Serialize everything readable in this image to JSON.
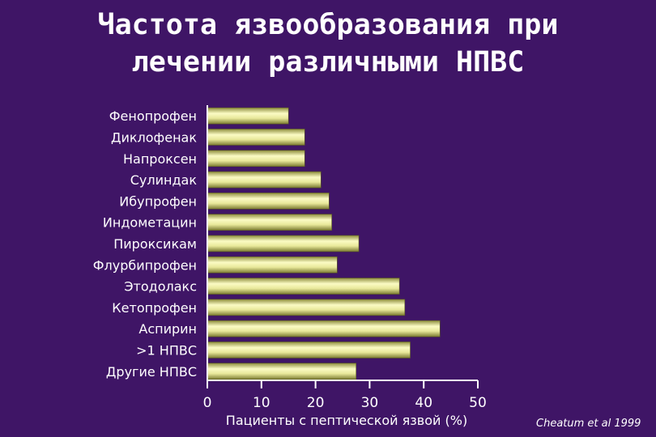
{
  "title_lines": [
    "Частота язвообразования при",
    "лечении различными НПВС"
  ],
  "citation": "Cheatum et al 1999",
  "colors": {
    "background": "#3f1566",
    "bar_light": "#fbfbc4",
    "bar_mid": "#dada7c",
    "bar_dark": "#8e8e3c",
    "text": "#ffffff"
  },
  "chart_data": {
    "type": "bar",
    "orientation": "horizontal",
    "categories": [
      "Фенопрофен",
      "Диклофенак",
      "Напроксен",
      "Сулиндак",
      "Ибупрофен",
      "Индометацин",
      "Пироксикам",
      "Флурбипрофен",
      "Этодолакс",
      "Кетопрофен",
      "Аспирин",
      ">1 НПВС",
      "Другие НПВС"
    ],
    "values": [
      15,
      18,
      18,
      21,
      22.5,
      23,
      28,
      24,
      35.5,
      36.5,
      43,
      37.5,
      27.5
    ],
    "xlabel": "Пациенты с пептической язвой (%)",
    "ylabel": "",
    "xlim": [
      0,
      50
    ],
    "xticks": [
      0,
      10,
      20,
      30,
      40,
      50
    ],
    "grid": false
  }
}
